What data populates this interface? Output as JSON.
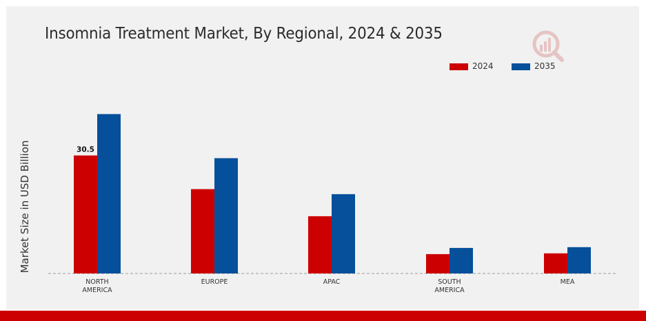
{
  "colors": {
    "series_2024": "#cc0000",
    "series_2035": "#064f9a",
    "background": "#f1f1f1",
    "accent_bar": "#cc0000"
  },
  "logo": {
    "icon": "market-research-logo-icon"
  },
  "chart_data": {
    "type": "bar",
    "title": "Insomnia Treatment Market, By Regional, 2024 & 2035",
    "xlabel": "",
    "ylabel": "Market Size in USD Billion",
    "categories": [
      "NORTH\nAMERICA",
      "EUROPE",
      "APAC",
      "SOUTH\nAMERICA",
      "MEA"
    ],
    "series": [
      {
        "name": "2024",
        "color": "#cc0000",
        "values": [
          30.5,
          21.8,
          14.8,
          5.0,
          5.2
        ]
      },
      {
        "name": "2035",
        "color": "#064f9a",
        "values": [
          41.2,
          29.8,
          20.5,
          6.6,
          6.8
        ]
      }
    ],
    "data_labels": [
      {
        "series": "2024",
        "category_index": 0,
        "text": "30.5"
      }
    ],
    "ylim": [
      0,
      60
    ],
    "grid": false,
    "baseline": "dashed",
    "legend_position": "top-right"
  }
}
